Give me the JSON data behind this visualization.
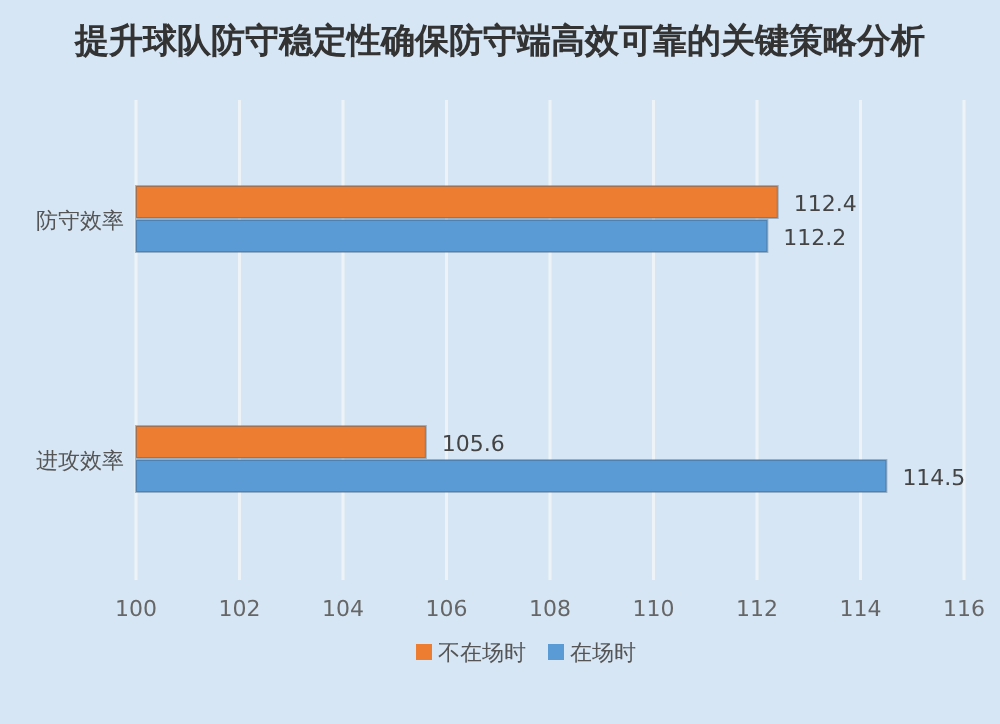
{
  "chart_data": {
    "type": "bar",
    "orientation": "horizontal",
    "title": "提升球队防守稳定性确保防守端高效可靠的关键策略分析",
    "categories": [
      "防守效率",
      "进攻效率"
    ],
    "series": [
      {
        "name": "不在场时",
        "color": "#ed7d31",
        "values": [
          112.4,
          105.6
        ]
      },
      {
        "name": "在场时",
        "color": "#5b9bd5",
        "values": [
          112.2,
          114.5
        ]
      }
    ],
    "xlim": [
      100,
      116
    ],
    "xticks": [
      100,
      102,
      104,
      106,
      108,
      110,
      112,
      114,
      116
    ],
    "grid": "x",
    "data_labels": true,
    "legend": "bottom"
  }
}
